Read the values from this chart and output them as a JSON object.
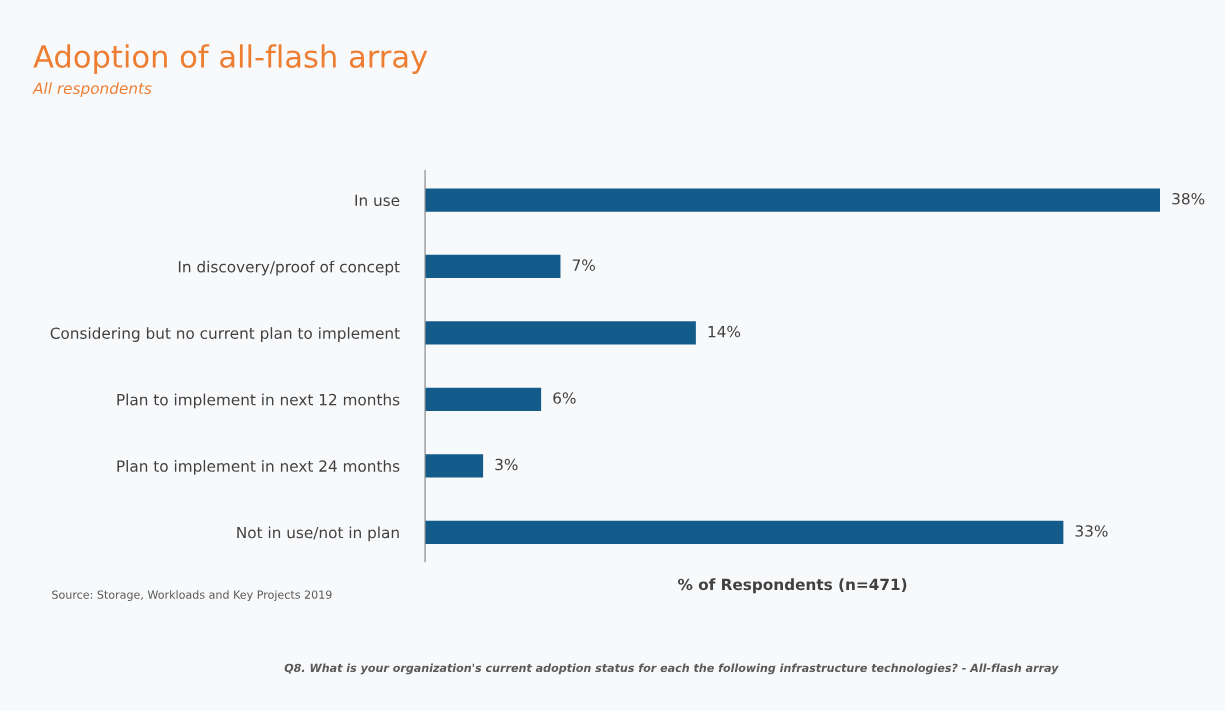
{
  "chart_data": {
    "type": "bar",
    "orientation": "horizontal",
    "title": "Adoption of all-flash array",
    "subtitle": "All respondents",
    "categories": [
      "In use",
      "In discovery/proof of concept",
      "Considering but no current plan to implement",
      "Plan to implement in next 12 months",
      "Plan to implement in next 24 months",
      "Not in use/not in plan"
    ],
    "values": [
      38,
      7,
      14,
      6,
      3,
      33
    ],
    "value_labels": [
      "38%",
      "7%",
      "14%",
      "6%",
      "3%",
      "33%"
    ],
    "color": "#125b8a",
    "xlabel": "% of Respondents (n=471)",
    "tick_labels": "y",
    "grid": false,
    "legend": false,
    "annotations": [
      "Source: Storage, Workloads and Key Projects 2019",
      "Q8. What is your organization's current adoption status for each the following infrastructure technologies? - All-flash array"
    ]
  }
}
